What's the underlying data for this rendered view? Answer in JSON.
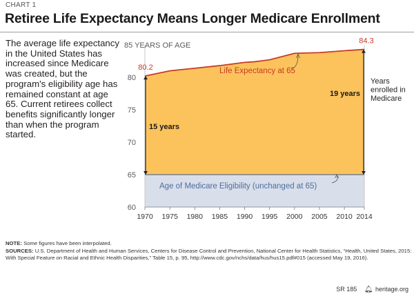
{
  "header": {
    "chart_label": "CHART 1",
    "title": "Retiree Life Expectancy Means Longer Medicare Enrollment"
  },
  "intro_text": "The average life expectancy in the United States has increased since Medicare was created, but the program's eligibility age has remained constant at age 65. Current retirees collect benefits significantly longer than when the program started.",
  "colors": {
    "area_fill": "#fcc35c",
    "line": "#c73a26",
    "eligibility_fill": "#d9deeb",
    "eligibility_text": "#4d6e9c",
    "axis": "#7a7a7a"
  },
  "chart_data": {
    "type": "area",
    "x": [
      1970,
      1975,
      1980,
      1985,
      1990,
      1992,
      1995,
      1997,
      2000,
      2005,
      2010,
      2014
    ],
    "series": [
      {
        "name": "Life Expectancy at 65",
        "values": [
          80.2,
          81.0,
          81.4,
          81.8,
          82.3,
          82.4,
          82.7,
          83.1,
          83.7,
          83.8,
          84.1,
          84.3
        ]
      }
    ],
    "baseline": 65,
    "xticks": [
      1970,
      1975,
      1980,
      1985,
      1990,
      1995,
      2000,
      2005,
      2010,
      2014
    ],
    "yticks": [
      60,
      65,
      70,
      75,
      80
    ],
    "ytick_top_label": "85 YEARS OF AGE",
    "ylim": [
      60,
      85
    ],
    "xlim": [
      1970,
      2014
    ],
    "grid": false,
    "annotations": {
      "start_value_label": "80.2",
      "end_value_label": "84.3",
      "series_label": "Life Expectancy at 65",
      "eligibility_label": "Age of Medicare Eligibility (unchanged at 65)",
      "start_span_label": "15 years",
      "end_span_label": "19 years",
      "side_label": "Years enrolled in Medicare"
    }
  },
  "notes": {
    "note_heading": "NOTE:",
    "note_text": "Some figures have been interpolated.",
    "sources_heading": "SOURCES:",
    "sources_text": "U.S. Department of Health and Human Services, Centers for Disease Control and Prevention, National Center for Health Statistics, “Health, United States, 2015: With Special Feature on Racial and Ethnic Health Disparities,” Table 15, p. 95, http://www.cdc.gov/nchs/data/hus/hus15.pdf#015 (accessed May 19, 2016)."
  },
  "footer": {
    "report_id": "SR 185",
    "logo_icon": "heritage-bell-icon",
    "site": "heritage.org"
  }
}
